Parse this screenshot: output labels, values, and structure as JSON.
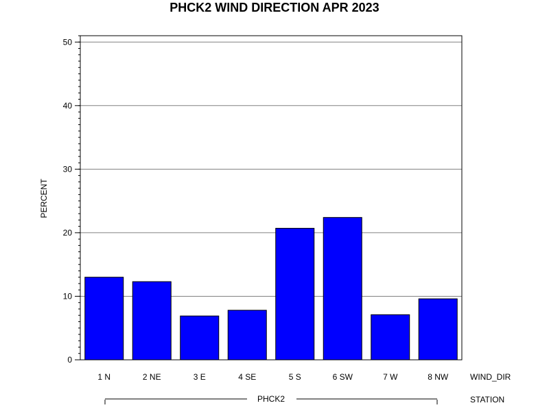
{
  "chart_data": {
    "type": "bar",
    "title": "PHCK2 WIND DIRECTION APR 2023",
    "ylabel": "PERCENT",
    "xlabel": "WIND_DIR",
    "group_axis_label": "STATION",
    "group_label": "PHCK2",
    "categories": [
      "1 N",
      "2 NE",
      "3 E",
      "4 SE",
      "5 S",
      "6 SW",
      "7 W",
      "8 NW"
    ],
    "values": [
      13.0,
      12.3,
      6.9,
      7.8,
      20.7,
      22.4,
      7.1,
      9.6
    ],
    "ylim": [
      0,
      51
    ],
    "yticks": [
      0,
      10,
      20,
      30,
      40,
      50
    ],
    "grid": true,
    "bar_color": "#0000ff",
    "bar_edge_color": "#000000",
    "grid_color": "#808080"
  }
}
